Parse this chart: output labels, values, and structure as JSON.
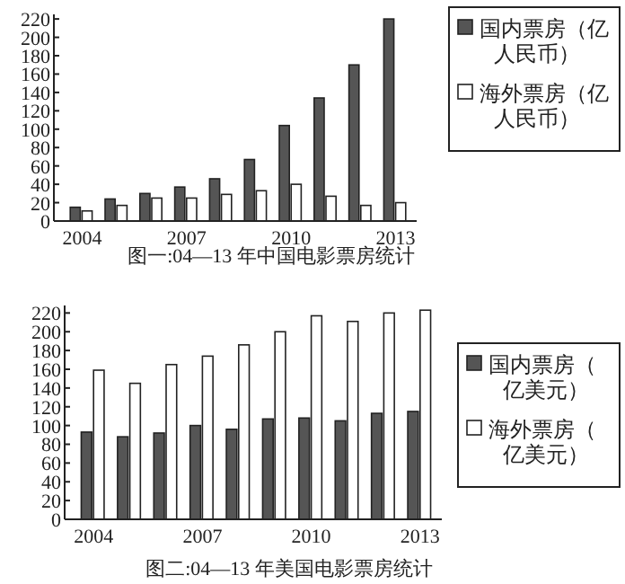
{
  "chart_data": [
    {
      "type": "bar",
      "title": "图一:04—13 年中国电影票房统计",
      "categories": [
        "2004",
        null,
        null,
        "2007",
        null,
        null,
        "2010",
        null,
        null,
        "2013"
      ],
      "ylim": [
        0,
        225
      ],
      "yticks": [
        0,
        20,
        40,
        60,
        80,
        100,
        120,
        140,
        160,
        180,
        200,
        220
      ],
      "legend": "top right",
      "series": [
        {
          "name": "国内票房（亿人民币）",
          "color": "#555555",
          "values": [
            15,
            24,
            30,
            37,
            46,
            67,
            104,
            134,
            170,
            220
          ]
        },
        {
          "name": "海外票房（亿人民币）",
          "color": "#ffffff",
          "values": [
            11,
            17,
            25,
            25,
            29,
            33,
            40,
            27,
            17,
            20
          ]
        }
      ]
    },
    {
      "type": "bar",
      "title": "图二:04—13 年美国电影票房统计",
      "categories": [
        "2004",
        null,
        null,
        "2007",
        null,
        null,
        "2010",
        null,
        null,
        "2013"
      ],
      "ylim": [
        0,
        228
      ],
      "yticks": [
        0,
        20,
        40,
        60,
        80,
        100,
        120,
        140,
        160,
        180,
        200,
        220
      ],
      "legend": "right",
      "series": [
        {
          "name": "国内票房（亿美元）",
          "color": "#555555",
          "values": [
            93,
            88,
            92,
            100,
            96,
            107,
            108,
            105,
            113,
            115
          ]
        },
        {
          "name": "海外票房（亿美元）",
          "color": "#ffffff",
          "values": [
            159,
            145,
            165,
            174,
            186,
            200,
            217,
            211,
            220,
            223
          ]
        }
      ]
    }
  ]
}
